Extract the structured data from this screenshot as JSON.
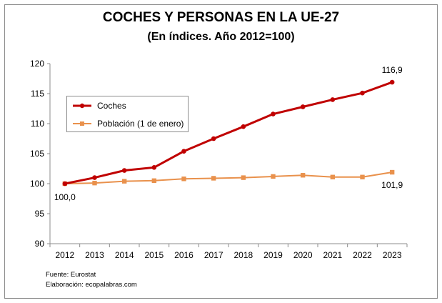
{
  "chart_data": {
    "type": "line",
    "title": "COCHES Y PERSONAS EN LA UE-27",
    "subtitle": "(En índices. Año 2012=100)",
    "categories": [
      "2012",
      "2013",
      "2014",
      "2015",
      "2016",
      "2017",
      "2018",
      "2019",
      "2020",
      "2021",
      "2022",
      "2023"
    ],
    "ylim": [
      90,
      120
    ],
    "yticks": [
      "90",
      "95",
      "100",
      "105",
      "110",
      "115",
      "120"
    ],
    "grid": false,
    "legend_position": "top-left",
    "series": [
      {
        "name": "Coches",
        "color": "#c00000",
        "marker": "circle",
        "values": [
          100.0,
          101.0,
          102.2,
          102.7,
          105.4,
          107.5,
          109.5,
          111.6,
          112.8,
          114.0,
          115.1,
          116.9
        ]
      },
      {
        "name": "Población (1 de enero)",
        "color": "#e9914c",
        "marker": "square",
        "values": [
          100.0,
          100.1,
          100.4,
          100.5,
          100.8,
          100.9,
          101.0,
          101.2,
          101.4,
          101.1,
          101.1,
          101.9
        ]
      }
    ],
    "annotations": {
      "start": "100,0",
      "coches_end": "116,9",
      "poblacion_end": "101,9"
    }
  },
  "source": {
    "fuente": "Fuente: Eurostat",
    "elaboracion": "Elaboración: ecopalabras.com"
  }
}
